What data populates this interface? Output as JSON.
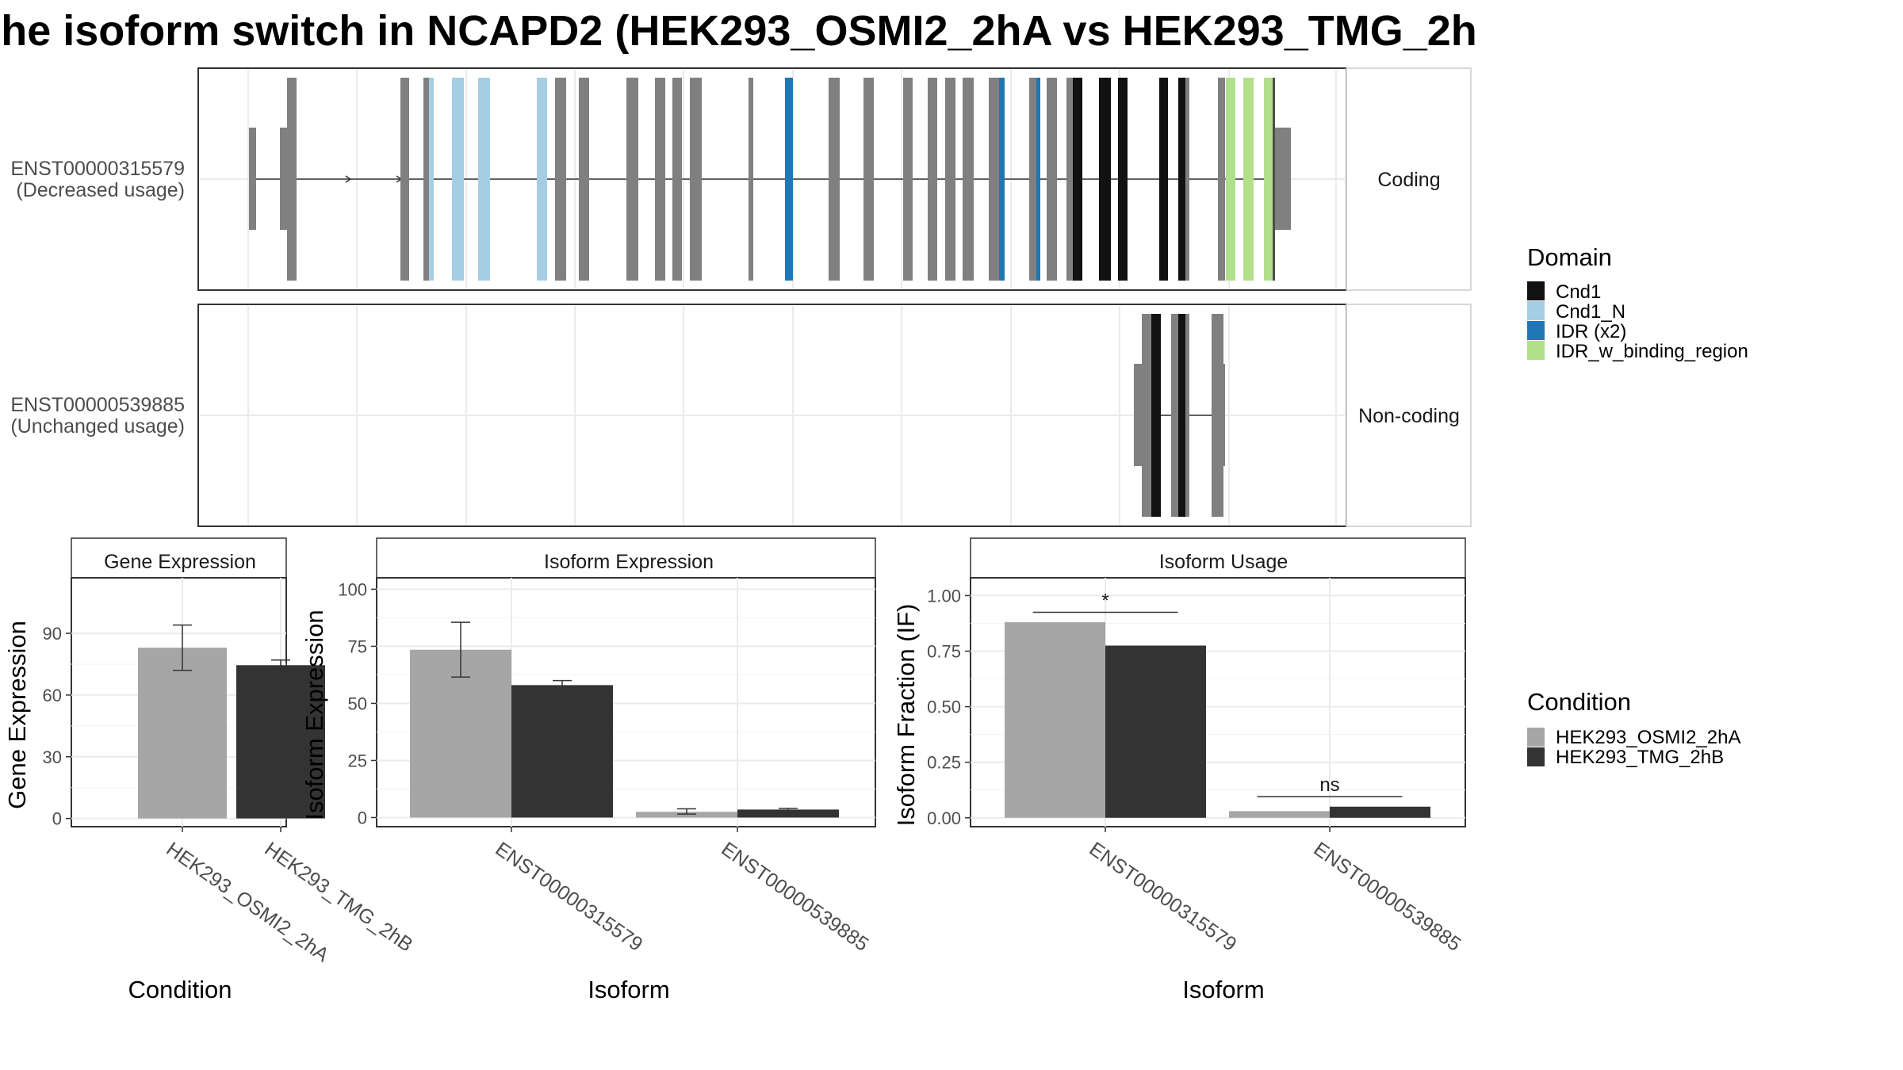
{
  "figure": {
    "title": "he isoform switch in NCAPD2 (HEK293_OSMI2_2hA vs HEK293_TMG_2h"
  },
  "structure": {
    "transcripts": [
      {
        "id": "ENST00000315579",
        "usage": "(Decreased usage)",
        "facet": "Coding"
      },
      {
        "id": "ENST00000539885",
        "usage": "(Unchanged usage)",
        "facet": "Non-coding"
      }
    ]
  },
  "legends": {
    "domain": {
      "title": "Domain",
      "items": [
        {
          "label": "Cnd1",
          "color": "#111111"
        },
        {
          "label": "Cnd1_N",
          "color": "#a6cee3"
        },
        {
          "label": "IDR (x2)",
          "color": "#1f78b4"
        },
        {
          "label": "IDR_w_binding_region",
          "color": "#b2df8a"
        }
      ]
    },
    "condition": {
      "title": "Condition",
      "items": [
        {
          "label": "HEK293_OSMI2_2hA",
          "color": "#a6a6a6"
        },
        {
          "label": "HEK293_TMG_2hB",
          "color": "#333333"
        }
      ]
    }
  },
  "chart_data": [
    {
      "type": "bar",
      "title": "Gene Expression",
      "xlabel": "Condition",
      "ylabel": "Gene Expression",
      "ylim": [
        -4,
        117
      ],
      "yticks": [
        0,
        30,
        60,
        90
      ],
      "ytick_labels": [
        "0",
        "30",
        "60",
        "90"
      ],
      "categories": [
        "HEK293_OSMI2_2hA",
        "HEK293_TMG_2hB"
      ],
      "series": [
        {
          "name": "HEK293_OSMI2_2hA",
          "values": [
            83,
            null
          ],
          "err": [
            [
              72,
              94
            ],
            null
          ]
        },
        {
          "name": "HEK293_TMG_2hB",
          "values": [
            null,
            74.5
          ],
          "err": [
            null,
            [
              73,
              77
            ]
          ]
        }
      ],
      "grid": true
    },
    {
      "type": "bar",
      "title": "Isoform Expression",
      "xlabel": "Isoform",
      "ylabel": "Isoform Expression",
      "ylim": [
        -4,
        105
      ],
      "yticks": [
        0,
        25,
        50,
        75,
        100
      ],
      "ytick_labels": [
        "0",
        "25",
        "50",
        "75",
        "100"
      ],
      "categories": [
        "ENST00000315579",
        "ENST00000539885"
      ],
      "series": [
        {
          "name": "HEK293_OSMI2_2hA",
          "values": [
            73.5,
            2.5
          ],
          "err": [
            [
              61.5,
              85.5
            ],
            [
              1.5,
              3.8
            ]
          ]
        },
        {
          "name": "HEK293_TMG_2hB",
          "values": [
            58,
            3.5
          ],
          "err": [
            [
              56.5,
              60
            ],
            [
              3,
              4
            ]
          ]
        }
      ],
      "grid": true
    },
    {
      "type": "bar",
      "title": "Isoform Usage",
      "xlabel": "Isoform",
      "ylabel": "Isoform Fraction (IF)",
      "ylim": [
        -0.04,
        1.08
      ],
      "yticks": [
        0,
        0.25,
        0.5,
        0.75,
        1.0
      ],
      "ytick_labels": [
        "0.00",
        "0.25",
        "0.50",
        "0.75",
        "1.00"
      ],
      "categories": [
        "ENST00000315579",
        "ENST00000539885"
      ],
      "series": [
        {
          "name": "HEK293_OSMI2_2hA",
          "values": [
            0.88,
            0.03
          ]
        },
        {
          "name": "HEK293_TMG_2hB",
          "values": [
            0.775,
            0.05
          ]
        }
      ],
      "significance": [
        "*",
        "ns"
      ],
      "grid": true
    }
  ]
}
